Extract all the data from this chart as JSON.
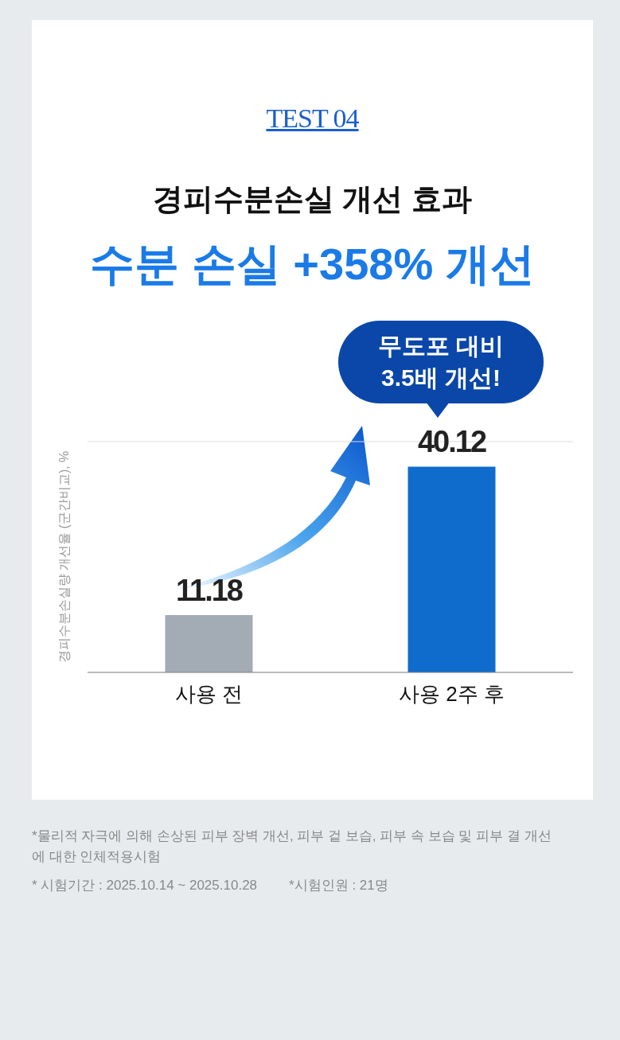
{
  "chart_data": {
    "type": "bar",
    "title": "경피수분손실 개선 효과",
    "subtitle": "수분 손실 +358% 개선",
    "ylabel": "경피수분손실량 개선율 (군간비교), %",
    "categories": [
      "사용 전",
      "사용 2주 후"
    ],
    "values": [
      11.18,
      40.12
    ],
    "colors": [
      "#a3abb5",
      "#0f6ccc"
    ],
    "ylim": [
      0,
      45
    ],
    "tick_labels": "x",
    "grid": "y",
    "data_labels": true,
    "annotations": [
      "TEST 04",
      "무도포 대비 3.5배 개선!",
      "*물리적 자극에 의해 손상된 피부 장벽 개선, 피부 겉 보습, 피부 속 보습 및 피부 결 개선에 대한 인체적용시험",
      "* 시험기간 : 2025.10.14 ~ 2025.10.28",
      "*시험인원 : 21명"
    ]
  }
}
